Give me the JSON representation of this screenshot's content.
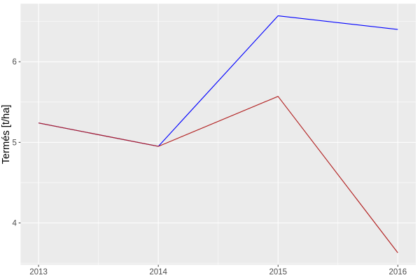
{
  "chart_data": {
    "type": "line",
    "title": "",
    "xlabel": "",
    "ylabel": "Termés [t/ha]",
    "x": [
      2013,
      2014,
      2015,
      2016
    ],
    "x_tick_labels": [
      "2013",
      "2014",
      "2015",
      "2016"
    ],
    "y_ticks": [
      4,
      5,
      6
    ],
    "y_tick_labels": [
      "4",
      "5",
      "6"
    ],
    "x_minor_ticks": [
      2013.5,
      2014.5,
      2015.5
    ],
    "y_minor_ticks": [
      3.5,
      4.5,
      5.5,
      6.5
    ],
    "xlim": [
      2012.85,
      2016.15
    ],
    "ylim": [
      3.48,
      6.72
    ],
    "series": [
      {
        "name": "blue",
        "color": "#0000FF",
        "values": [
          5.24,
          4.95,
          6.57,
          6.4
        ]
      },
      {
        "name": "red",
        "color": "#B22222",
        "values": [
          5.24,
          4.95,
          5.57,
          3.63
        ]
      }
    ],
    "grid": true,
    "legend": "none",
    "style": {
      "panel_bg": "#EBEBEB",
      "grid_color": "#FFFFFF",
      "tick_color": "#333333",
      "tick_label_color": "#4D4D4D",
      "axis_title_color": "#000000",
      "outer_bg": "#FFFFFF"
    }
  }
}
